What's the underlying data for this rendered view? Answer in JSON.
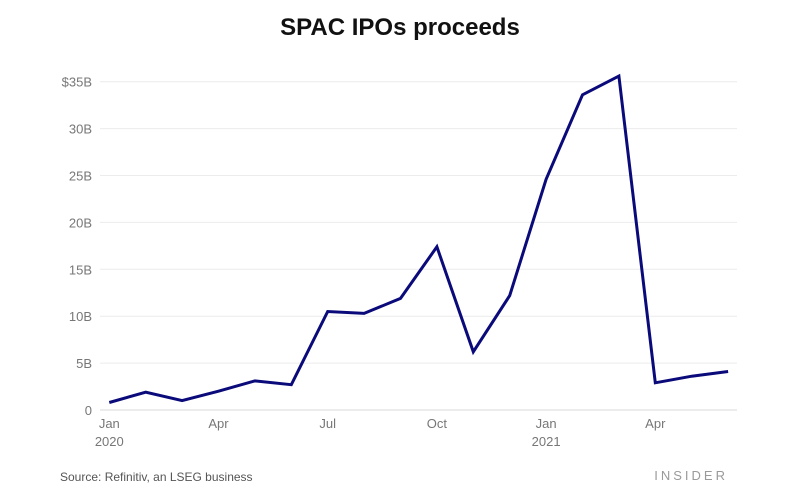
{
  "chart_data": {
    "type": "line",
    "title": "SPAC IPOs proceeds",
    "xlabel": "",
    "ylabel": "",
    "x": [
      "2020-01",
      "2020-02",
      "2020-03",
      "2020-04",
      "2020-05",
      "2020-06",
      "2020-07",
      "2020-08",
      "2020-09",
      "2020-10",
      "2020-11",
      "2020-12",
      "2021-01",
      "2021-02",
      "2021-03",
      "2021-04",
      "2021-05",
      "2021-06"
    ],
    "series": [
      {
        "values": [
          0.8,
          1.9,
          1.0,
          2.0,
          3.1,
          2.7,
          10.5,
          10.3,
          11.9,
          17.4,
          6.2,
          12.2,
          24.6,
          33.6,
          35.6,
          2.9,
          3.6,
          4.1
        ],
        "color": "#0a0a7a"
      }
    ],
    "ylim": [
      0,
      35
    ],
    "yticks": [
      {
        "value": 0,
        "label": "0"
      },
      {
        "value": 5,
        "label": "5B"
      },
      {
        "value": 10,
        "label": "10B"
      },
      {
        "value": 15,
        "label": "15B"
      },
      {
        "value": 20,
        "label": "20B"
      },
      {
        "value": 25,
        "label": "25B"
      },
      {
        "value": 30,
        "label": "30B"
      },
      {
        "value": 35,
        "label": "$35B"
      }
    ],
    "xticks": [
      {
        "index": 0,
        "label": "Jan",
        "sublabel": "2020"
      },
      {
        "index": 3,
        "label": "Apr",
        "sublabel": ""
      },
      {
        "index": 6,
        "label": "Jul",
        "sublabel": ""
      },
      {
        "index": 9,
        "label": "Oct",
        "sublabel": ""
      },
      {
        "index": 12,
        "label": "Jan",
        "sublabel": "2021"
      },
      {
        "index": 15,
        "label": "Apr",
        "sublabel": ""
      }
    ],
    "grid": true,
    "legend": "none"
  },
  "footer": {
    "source": "Source: Refinitiv, an LSEG business",
    "brand": "INSIDER"
  }
}
